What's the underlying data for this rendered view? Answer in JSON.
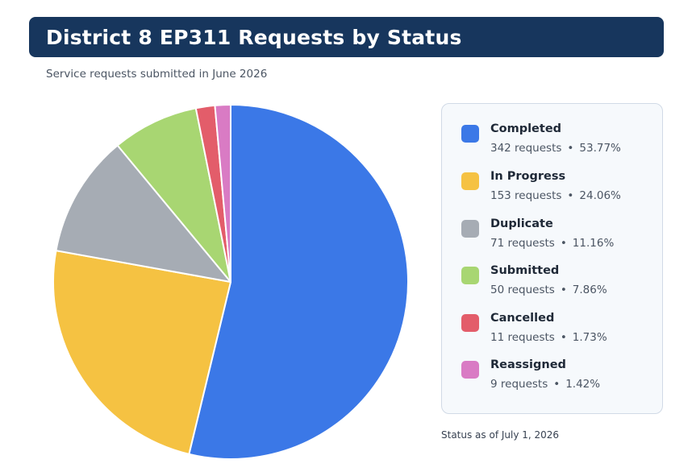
{
  "header": {
    "title": "District 8 EP311 Requests by Status",
    "subtitle": "Service requests submitted in June 2026"
  },
  "footnote": "Status as of July 1, 2026",
  "legend_separator": "•",
  "chart_data": {
    "type": "pie",
    "title": "District 8 EP311 Requests by Status",
    "subtitle": "Service requests submitted in June 2026",
    "legend_placement": "right",
    "slices": [
      {
        "label": "Completed",
        "value": 342,
        "value_text": "342 requests",
        "percent_text": "53.77%",
        "color": "#3b78e7"
      },
      {
        "label": "In Progress",
        "value": 153,
        "value_text": "153 requests",
        "percent_text": "24.06%",
        "color": "#f5c242"
      },
      {
        "label": "Duplicate",
        "value": 71,
        "value_text": "71 requests",
        "percent_text": "11.16%",
        "color": "#a6acb4"
      },
      {
        "label": "Submitted",
        "value": 50,
        "value_text": "50 requests",
        "percent_text": "7.86%",
        "color": "#a8d672"
      },
      {
        "label": "Cancelled",
        "value": 11,
        "value_text": "11 requests",
        "percent_text": "1.73%",
        "color": "#e35d6a"
      },
      {
        "label": "Reassigned",
        "value": 9,
        "value_text": "9 requests",
        "percent_text": "1.42%",
        "color": "#d97bc4"
      }
    ]
  }
}
